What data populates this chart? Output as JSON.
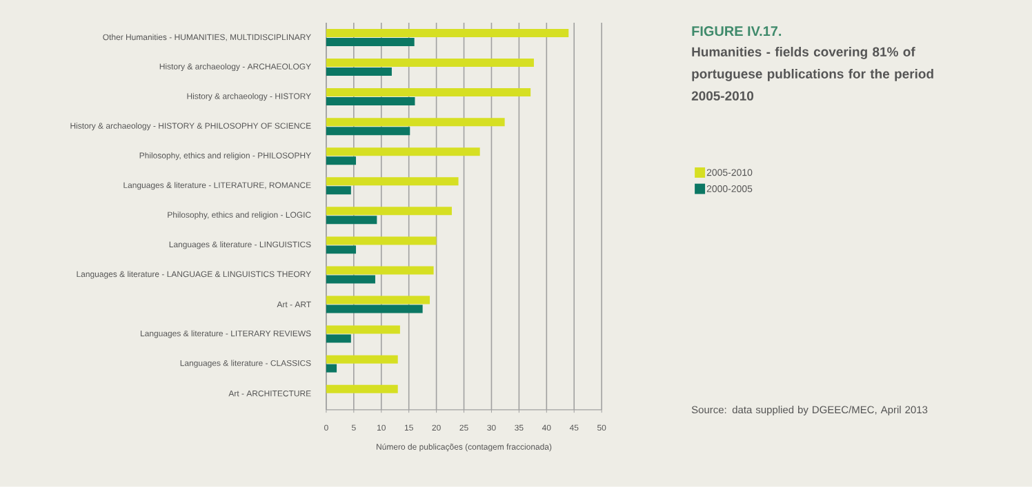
{
  "chart_data": {
    "type": "bar",
    "orientation": "horizontal",
    "title": "FIGURE IV.17.",
    "subtitle": "Humanities - fields covering 81% of portuguese publications for the period 2005-2010",
    "xlabel": "Número de publicações (contagem fraccionada)",
    "categories": [
      "Other Humanities - HUMANITIES, MULTIDISCIPLINARY",
      "History & archaeology - ARCHAEOLOGY",
      "History & archaeology - HISTORY",
      "History & archaeology - HISTORY & PHILOSOPHY OF SCIENCE",
      "Philosophy, ethics and religion - PHILOSOPHY",
      "Languages & literature - LITERATURE, ROMANCE",
      "Philosophy, ethics and religion - LOGIC",
      "Languages & literature - LINGUISTICS",
      "Languages & literature - LANGUAGE & LINGUISTICS THEORY",
      "Art - ART",
      "Languages & literature - LITERARY REVIEWS",
      "Languages & literature - CLASSICS",
      "Art - ARCHITECTURE"
    ],
    "series": [
      {
        "name": "2005-2010",
        "color": "#d6df23",
        "values": [
          44.0,
          37.7,
          37.1,
          32.4,
          27.9,
          24.0,
          22.8,
          20.0,
          19.5,
          18.8,
          13.4,
          13.0,
          13.0
        ]
      },
      {
        "name": "2000-2005",
        "color": "#0b7763",
        "values": [
          16.0,
          11.9,
          16.1,
          15.2,
          5.4,
          4.5,
          9.2,
          5.4,
          8.9,
          17.5,
          4.5,
          1.9,
          null
        ]
      }
    ],
    "xlim": [
      0,
      50
    ],
    "xticks": [
      0,
      5,
      10,
      15,
      20,
      25,
      30,
      35,
      40,
      45,
      50
    ],
    "grid": "x",
    "legend": "right",
    "annotations": [
      "Source: data supplied by DGEEC/MEC, April 2013"
    ]
  }
}
